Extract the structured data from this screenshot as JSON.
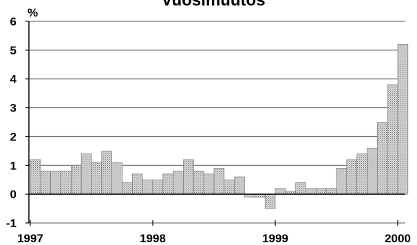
{
  "chart_data": {
    "type": "bar",
    "title": "Vuosimuutos",
    "ylabel": "%",
    "xlabel": "",
    "ylim": [
      -1,
      6
    ],
    "yticks": [
      "6",
      "5",
      "4",
      "3",
      "2",
      "1",
      "0",
      "-1"
    ],
    "ytick_values": [
      6,
      5,
      4,
      3,
      2,
      1,
      0,
      -1
    ],
    "xtick_labels": [
      "1997",
      "1998",
      "1999",
      "2000"
    ],
    "xtick_year_values": [
      1997,
      1998,
      1999,
      2000
    ],
    "x_start": 1997,
    "periods_per_year": 12,
    "grid": true,
    "bar_fill": "#c9c9c9",
    "values": [
      1.2,
      0.8,
      0.8,
      0.8,
      1.0,
      1.4,
      1.1,
      1.5,
      1.1,
      0.4,
      0.7,
      0.5,
      0.5,
      0.7,
      0.8,
      1.2,
      0.8,
      0.7,
      0.9,
      0.5,
      0.6,
      -0.1,
      -0.1,
      -0.5,
      0.2,
      0.1,
      0.4,
      0.2,
      0.2,
      0.2,
      0.9,
      1.2,
      1.4,
      1.6,
      2.5,
      3.8,
      5.2
    ]
  }
}
